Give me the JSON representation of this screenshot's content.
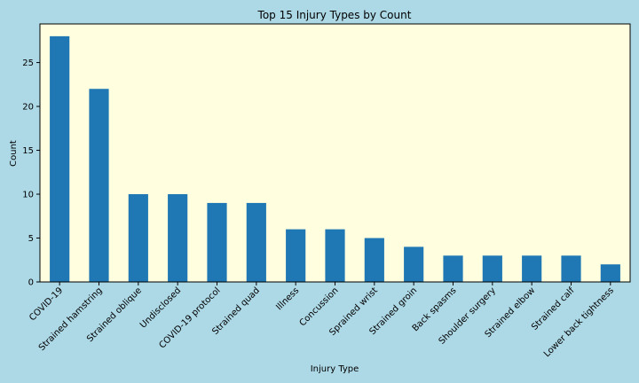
{
  "chart_data": {
    "type": "bar",
    "title": "Top 15 Injury Types by Count",
    "xlabel": "Injury Type",
    "ylabel": "Count",
    "categories": [
      "COVID-19",
      "Strained hamstring",
      "Strained oblique",
      "Undisclosed",
      "COVID-19 protocol",
      "Strained quad",
      "Illness",
      "Concussion",
      "Sprained wrist",
      "Strained groin",
      "Back spasms",
      "Shoulder surgery",
      "Strained elbow",
      "Strained calf",
      "Lower back tightness"
    ],
    "values": [
      28,
      22,
      10,
      10,
      9,
      9,
      6,
      6,
      5,
      4,
      3,
      3,
      3,
      3,
      2
    ],
    "ylim": [
      0,
      29.4
    ],
    "yticks": [
      0,
      5,
      10,
      15,
      20,
      25
    ],
    "grid": false,
    "legend": "none",
    "colors": {
      "bar": "#1f77b4",
      "plot_background": "#ffffe0",
      "figure_background": "#add8e6"
    }
  }
}
